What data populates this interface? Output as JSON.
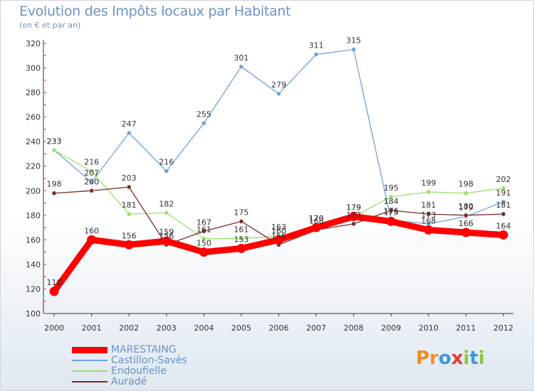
{
  "title": "Evolution des Impôts locaux par Habitant",
  "subtitle": "(en € et par an)",
  "logo": {
    "letters": [
      "P",
      "r",
      "o",
      "x",
      "i",
      "t",
      "i"
    ],
    "colors": [
      "#f28c1e",
      "#f28c1e",
      "#3b9bd8",
      "#e63b2e",
      "#8cc63f",
      "#3b9bd8",
      "#8cc63f"
    ]
  },
  "chart_data": {
    "type": "line",
    "title": "Evolution des Impôts locaux par Habitant",
    "subtitle": "(en € et par an)",
    "xlabel": "",
    "ylabel": "",
    "x": [
      "2000",
      "2001",
      "2002",
      "2003",
      "2004",
      "2005",
      "2006",
      "2007",
      "2008",
      "2009",
      "2010",
      "2011",
      "2012"
    ],
    "ylim": [
      100,
      320
    ],
    "yticks": [
      100,
      120,
      140,
      160,
      180,
      200,
      220,
      240,
      260,
      280,
      300,
      320
    ],
    "grid": false,
    "legend_position": "bottom-left",
    "series": [
      {
        "name": "MARESTAING",
        "color": "#ff0000",
        "values": [
          118,
          160,
          156,
          159,
          150,
          153,
          160,
          170,
          179,
          175,
          168,
          166,
          164
        ],
        "labels": [
          "118",
          "160",
          "156",
          "159",
          "150",
          "153",
          "160",
          "170",
          "179",
          "175",
          "168",
          "166",
          "164"
        ]
      },
      {
        "name": "Castillon-Savès",
        "color": "#6fa3d6",
        "values": [
          233,
          207,
          247,
          216,
          255,
          301,
          279,
          311,
          315,
          176,
          173,
          179,
          191
        ],
        "labels": [
          "233",
          "207",
          "247",
          "216",
          "255",
          "301",
          "279",
          "311",
          "315",
          "176",
          "173",
          "179",
          "191"
        ]
      },
      {
        "name": "Endoufielle",
        "color": "#99e066",
        "values": [
          233,
          216,
          181,
          182,
          161,
          161,
          163,
          170,
          179,
          195,
          199,
          198,
          202
        ],
        "labels": [
          "233",
          "216",
          "181",
          "182",
          "161",
          "161",
          "163",
          "170",
          "179",
          "195",
          "199",
          "198",
          "202"
        ]
      },
      {
        "name": "Auradé",
        "color": "#7a2b2b",
        "values": [
          198,
          200,
          203,
          156,
          167,
          175,
          156,
          168,
          173,
          184,
          181,
          180,
          181
        ],
        "labels": [
          "198",
          "200",
          "203",
          "156",
          "167",
          "175",
          "156",
          "168",
          "173",
          "184",
          "181",
          "180",
          "181"
        ]
      }
    ]
  }
}
